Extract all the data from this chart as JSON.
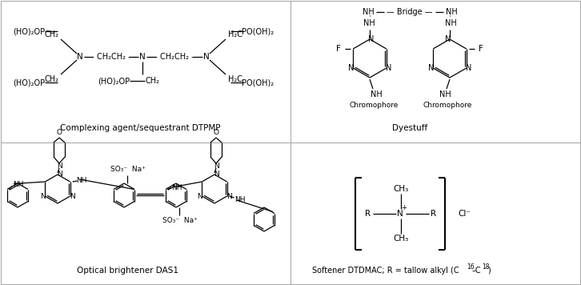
{
  "background_color": "#ffffff",
  "fig_width": 7.26,
  "fig_height": 3.56,
  "label_dtpmp": "Complexing agent/sequestrant DTPMP",
  "label_dyestuff": "Dyestuff",
  "label_das1": "Optical brightener DAS1",
  "label_softener_base": "Softener DTDMAC; R = tallow alkyl (C",
  "label_softener_16": "16",
  "label_softener_dash": "–C",
  "label_softener_18": "18",
  "label_softener_close": ")"
}
